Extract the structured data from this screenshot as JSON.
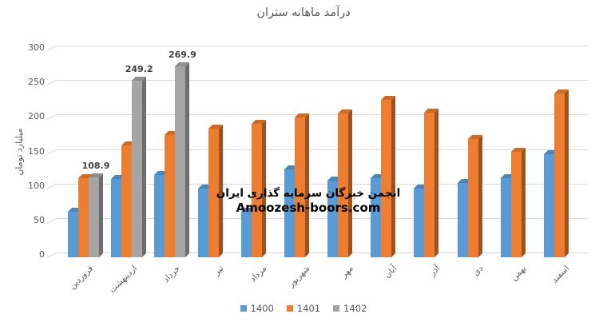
{
  "chart_data": {
    "type": "bar",
    "title": "درآمد ماهانه ستران",
    "ylabel": "میلیارد تومان",
    "xlabel": "",
    "ylim": [
      0,
      300
    ],
    "yticks": [
      0,
      50,
      100,
      150,
      200,
      250,
      300
    ],
    "grid": true,
    "legend_position": "bottom",
    "style": "3d-clustered-column",
    "categories": [
      "فروردین",
      "اردیبهشت",
      "خرداد",
      "تیر",
      "مرداد",
      "شهریور",
      "مهر",
      "آبان",
      "آذر",
      "دی",
      "بهمن",
      "اسفند"
    ],
    "series": [
      {
        "name": "1400",
        "color": "#5B9BD5",
        "show_data_labels": false,
        "values": [
          59,
          107,
          112,
          93,
          59,
          120,
          104,
          108,
          93,
          101,
          108,
          143
        ]
      },
      {
        "name": "1401",
        "color": "#ED7D31",
        "show_data_labels": false,
        "values": [
          108,
          155,
          170,
          179,
          187,
          196,
          202,
          221,
          203,
          164,
          146,
          231
        ]
      },
      {
        "name": "1402",
        "color": "#A5A5A5",
        "show_data_labels": true,
        "values": [
          108.9,
          249.2,
          269.9,
          null,
          null,
          null,
          null,
          null,
          null,
          null,
          null,
          null
        ],
        "data_labels": [
          "108.9",
          "249.2",
          "269.9"
        ]
      }
    ]
  },
  "watermark": {
    "line1": "انجمن خبرگان سرمایه گذاری ایران",
    "line2": "Amoozesh-boors.com"
  },
  "colors": {
    "axis_text": "#595959",
    "grid": "#D9D9D9",
    "data_label": "#404040",
    "title": "#595959",
    "watermark": "#000000",
    "background": "#FFFFFF"
  }
}
